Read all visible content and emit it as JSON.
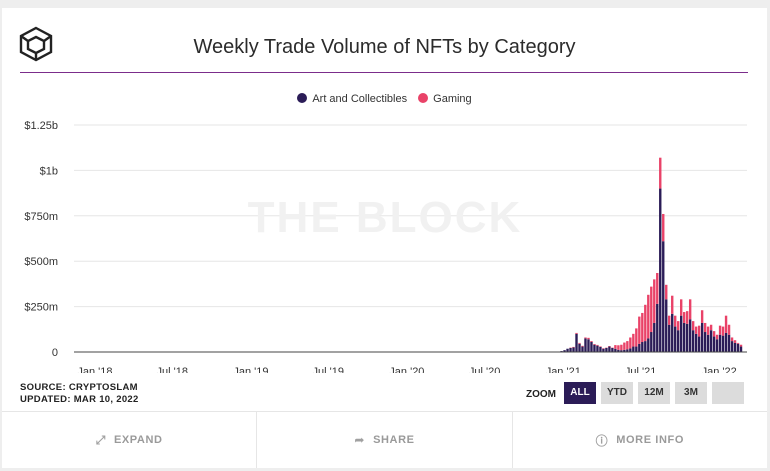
{
  "header": {
    "title": "Weekly Trade Volume of NFTs by Category"
  },
  "chart_data": {
    "type": "bar",
    "stacked": true,
    "watermark": "THE BLOCK",
    "x_tick_labels": [
      "Jan '18",
      "Jul '18",
      "Jan '19",
      "Jul '19",
      "Jan '20",
      "Jul '20",
      "Jan '21",
      "Jul '21",
      "Jan '22"
    ],
    "y_tick_labels": [
      "0",
      "$250m",
      "$500m",
      "$750m",
      "$1b",
      "$1.25b"
    ],
    "y_tick_values": [
      0,
      250,
      500,
      750,
      1000,
      1250
    ],
    "ylim": [
      0,
      1250
    ],
    "y_unit": "millions USD",
    "grid": true,
    "legend_position": "top",
    "x_start": "2017-11-13",
    "x_end": "2022-03-07",
    "first_value_week": "2020-12-21",
    "week_interval_days": 7,
    "series": [
      {
        "name": "Art and Collectibles",
        "color": "#2b1c57",
        "values": [
          2,
          5,
          10,
          18,
          22,
          25,
          100,
          45,
          30,
          75,
          70,
          55,
          40,
          35,
          28,
          18,
          22,
          30,
          22,
          18,
          12,
          10,
          12,
          15,
          20,
          30,
          30,
          45,
          55,
          60,
          75,
          110,
          160,
          265,
          900,
          610,
          290,
          150,
          210,
          140,
          120,
          200,
          160,
          155,
          180,
          120,
          100,
          85,
          160,
          110,
          95,
          120,
          85,
          70,
          95,
          90,
          105,
          95,
          60,
          50,
          45,
          30
        ]
      },
      {
        "name": "Gaming",
        "color": "#e94268",
        "values": [
          0,
          0,
          0,
          0,
          2,
          3,
          5,
          5,
          4,
          5,
          8,
          5,
          4,
          4,
          3,
          3,
          2,
          3,
          2,
          20,
          25,
          30,
          40,
          45,
          60,
          70,
          100,
          150,
          160,
          200,
          240,
          250,
          240,
          170,
          170,
          150,
          80,
          50,
          100,
          60,
          50,
          90,
          60,
          70,
          110,
          50,
          40,
          60,
          70,
          50,
          45,
          30,
          30,
          25,
          50,
          50,
          95,
          55,
          20,
          15,
          5,
          10
        ]
      }
    ]
  },
  "source": {
    "line1": "SOURCE: CRYPTOSLAM",
    "line2": "UPDATED: MAR 10, 2022"
  },
  "zoom": {
    "label": "ZOOM",
    "buttons": [
      "ALL",
      "YTD",
      "12M",
      "3M",
      ""
    ],
    "active_index": 0
  },
  "footer": {
    "expand": "EXPAND",
    "share": "SHARE",
    "more_info": "MORE INFO"
  },
  "colors": {
    "accent": "#7b2d8b",
    "art": "#2b1c57",
    "gaming": "#e94268"
  }
}
